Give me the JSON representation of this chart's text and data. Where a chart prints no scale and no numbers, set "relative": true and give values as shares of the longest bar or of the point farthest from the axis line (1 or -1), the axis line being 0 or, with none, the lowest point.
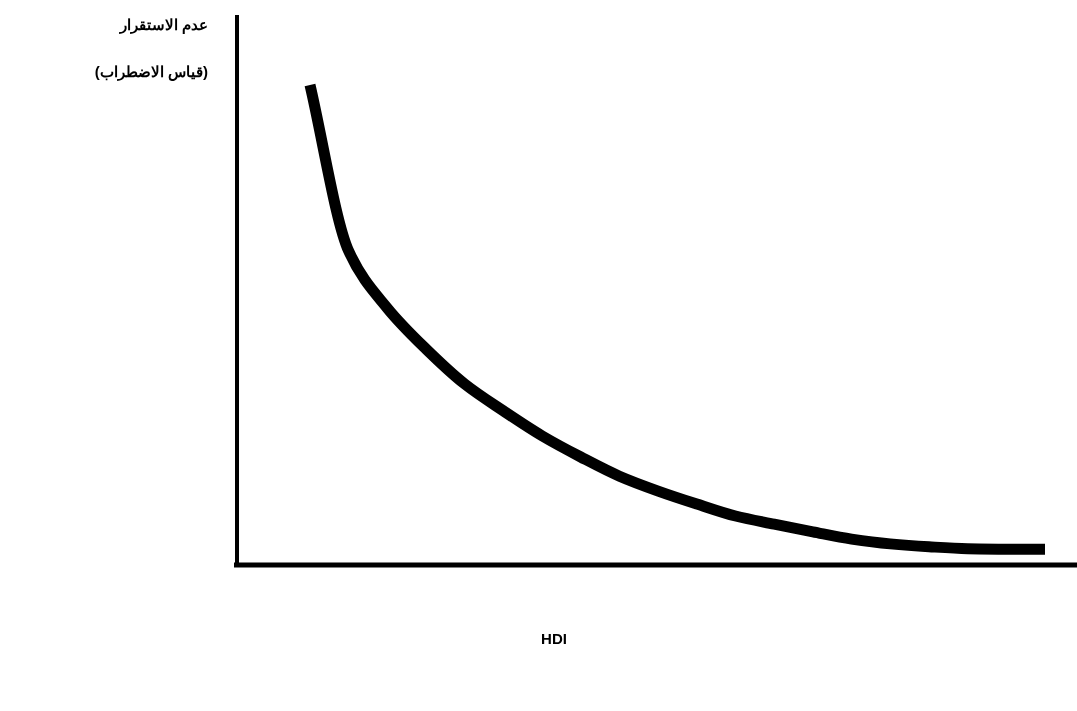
{
  "chart_data": {
    "type": "line",
    "relative": true,
    "xlabel": "HDI",
    "ylabel": "عدم الاستقرار\n(قياس الاضطراب)",
    "categories": [
      null,
      null,
      null,
      null,
      null,
      null,
      null,
      null,
      null,
      null,
      null,
      null,
      null,
      null,
      null,
      null,
      null,
      null,
      null,
      null
    ],
    "series": [
      {
        "color": "#000000",
        "values": [
          1,
          0.654,
          0.535,
          0.45,
          0.377,
          0.321,
          0.269,
          0.225,
          0.185,
          0.154,
          0.127,
          0.102,
          0.085,
          0.069,
          0.054,
          0.044,
          0.038,
          0.034,
          0.033,
          0.033
        ]
      }
    ]
  }
}
